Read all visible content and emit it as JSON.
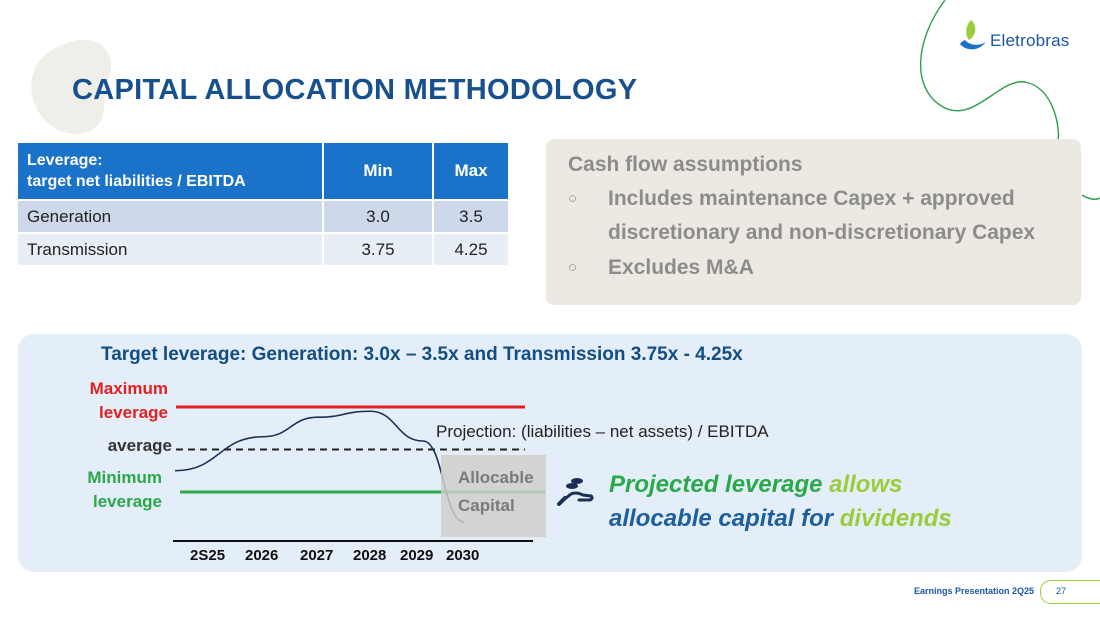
{
  "logo": {
    "text": "Eletrobras"
  },
  "title": "CAPITAL ALLOCATION METHODOLOGY",
  "leverage_table": {
    "header_line1": "Leverage:",
    "header_line2": "target net liabilities / EBITDA",
    "col_min": "Min",
    "col_max": "Max",
    "rows": [
      {
        "name": "Generation",
        "min": "3.0",
        "max": "3.5"
      },
      {
        "name": "Transmission",
        "min": "3.75",
        "max": "4.25"
      }
    ]
  },
  "cash_flow": {
    "title": "Cash flow assumptions",
    "items": [
      "Includes maintenance Capex + approved discretionary and non-discretionary Capex",
      "Excludes M&A"
    ]
  },
  "chart_data": {
    "type": "line",
    "title": "Target leverage: Generation: 3.0x – 3.5x and Transmission 3.75x - 4.25x",
    "categories": [
      "2S25",
      "2026",
      "2027",
      "2028",
      "2029",
      "2030"
    ],
    "reference_lines": [
      {
        "name": "Maximum leverage",
        "line1": "Maximum",
        "line2": "leverage",
        "color": "#e32020",
        "level": 1.0
      },
      {
        "name": "average",
        "line1": "average",
        "color": "#222222",
        "level": 0.5
      },
      {
        "name": "Minimum leverage",
        "line1": "Minimum",
        "line2": "leverage",
        "color": "#2aa84a",
        "level": 0.0
      }
    ],
    "series": [
      {
        "name": "Projection: (liabilities – net assets) / EBITDA",
        "color": "#1b2f57",
        "values": [
          0.25,
          0.65,
          0.88,
          0.95,
          0.6,
          -0.35
        ]
      }
    ],
    "annotation": {
      "line1": "Allocable",
      "line2": "Capital"
    }
  },
  "callout": {
    "part1": "Projected leverage ",
    "part2": "allows",
    "part3": "allocable capital for ",
    "part4": "dividends"
  },
  "footer": {
    "text": "Earnings Presentation 2Q25",
    "page": "27"
  },
  "colors": {
    "primary_blue": "#16508f",
    "table_header": "#1a72c9",
    "accent_green": "#2aa84a",
    "accent_lime": "#9ccc3c"
  }
}
